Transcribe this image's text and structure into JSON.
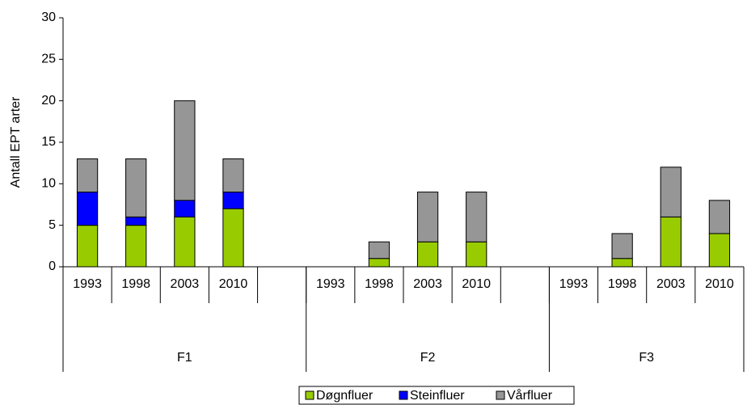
{
  "chart_data": {
    "type": "bar",
    "stacked": true,
    "y_label": "Antall EPT arter",
    "groups": [
      {
        "label": "F1",
        "categories": [
          "1993",
          "1998",
          "2003",
          "2010",
          null
        ]
      },
      {
        "label": "F2",
        "categories": [
          "1993",
          "1998",
          "2003",
          "2010",
          null
        ]
      },
      {
        "label": "F3",
        "categories": [
          "1993",
          "1998",
          "2003",
          "2010"
        ]
      }
    ],
    "series": [
      {
        "name": "Døgnfluer",
        "color": "#99cc00",
        "values": [
          5,
          5,
          6,
          7,
          null,
          0,
          1,
          3,
          3,
          null,
          0,
          1,
          6,
          4
        ]
      },
      {
        "name": "Steinfluer",
        "color": "#0000ff",
        "values": [
          4,
          1,
          2,
          2,
          null,
          0,
          0,
          0,
          0,
          null,
          0,
          0,
          0,
          0
        ]
      },
      {
        "name": "Vårfluer",
        "color": "#969696",
        "values": [
          4,
          7,
          12,
          4,
          null,
          0,
          2,
          6,
          6,
          null,
          0,
          3,
          6,
          4
        ]
      }
    ],
    "ylim": [
      0,
      30
    ],
    "yticks": [
      0,
      5,
      10,
      15,
      20,
      25,
      30
    ],
    "grid": false
  }
}
